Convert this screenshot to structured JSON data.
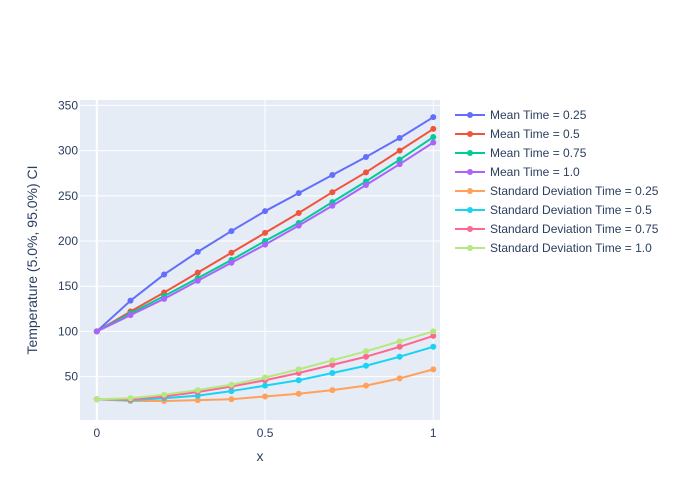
{
  "chart_data": {
    "type": "line",
    "xlabel": "x",
    "ylabel": "Temperature (5.0%, 95.0%) CI",
    "xlim": [
      -0.05,
      1.02
    ],
    "ylim": [
      2,
      356
    ],
    "x_ticks": [
      0,
      0.5,
      1
    ],
    "x_tick_labels": [
      "0",
      "0.5",
      "1"
    ],
    "y_ticks": [
      50,
      100,
      150,
      200,
      250,
      300,
      350
    ],
    "y_tick_labels": [
      "50",
      "100",
      "150",
      "200",
      "250",
      "300",
      "350"
    ],
    "grid": true,
    "legend_position": "right",
    "plot_background": "#e5ecf6",
    "x": [
      0,
      0.1,
      0.2,
      0.3,
      0.4,
      0.5,
      0.6,
      0.7,
      0.8,
      0.9,
      1.0
    ],
    "series": [
      {
        "name": "Mean Time = 0.25",
        "color": "#636efa",
        "values": [
          100,
          134,
          163,
          188,
          211,
          233,
          253,
          273,
          293,
          314,
          337
        ]
      },
      {
        "name": "Mean Time = 0.5",
        "color": "#ef553b",
        "values": [
          100,
          122,
          143,
          165,
          187,
          209,
          231,
          254,
          276,
          300,
          324
        ]
      },
      {
        "name": "Mean Time = 0.75",
        "color": "#00cc96",
        "values": [
          100,
          120,
          139,
          159,
          179,
          200,
          220,
          243,
          266,
          290,
          315
        ]
      },
      {
        "name": "Mean Time = 1.0",
        "color": "#ab63fa",
        "values": [
          100,
          118,
          136,
          156,
          176,
          196,
          217,
          239,
          262,
          285,
          309
        ]
      },
      {
        "name": "Standard Deviation Time = 0.25",
        "color": "#ffa15a",
        "values": [
          25,
          23,
          23,
          24,
          25,
          28,
          31,
          35,
          40,
          48,
          58
        ]
      },
      {
        "name": "Standard Deviation Time = 0.5",
        "color": "#19d3f3",
        "values": [
          25,
          24,
          26,
          29,
          34,
          40,
          46,
          54,
          62,
          72,
          83
        ]
      },
      {
        "name": "Standard Deviation Time = 0.75",
        "color": "#ff6692",
        "values": [
          25,
          25,
          28,
          33,
          39,
          46,
          54,
          63,
          72,
          83,
          95
        ]
      },
      {
        "name": "Standard Deviation Time = 1.0",
        "color": "#b6e880",
        "values": [
          25,
          26,
          30,
          35,
          41,
          49,
          58,
          68,
          78,
          89,
          100
        ]
      }
    ]
  }
}
